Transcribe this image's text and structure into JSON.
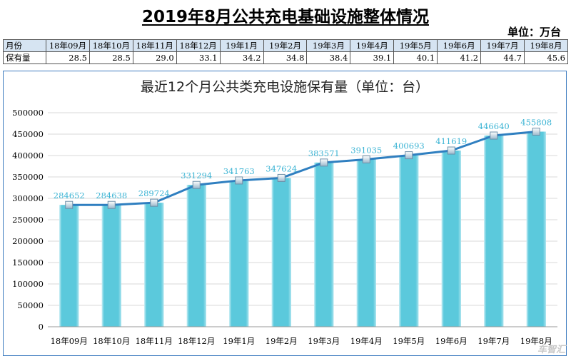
{
  "header": {
    "title": "2019年8月公共充电基础设施整体情况",
    "unit": "单位：万台"
  },
  "table": {
    "row_labels": [
      "月份",
      "保有量"
    ],
    "months": [
      "18年09月",
      "18年10月",
      "18年11月",
      "18年12月",
      "19年1月",
      "19年2月",
      "19年3月",
      "19年4月",
      "19年5月",
      "19年6月",
      "19年7月",
      "19年8月"
    ],
    "values": [
      "28.5",
      "28.5",
      "29.0",
      "33.1",
      "34.2",
      "34.8",
      "38.4",
      "39.1",
      "40.1",
      "41.2",
      "44.7",
      "45.6"
    ]
  },
  "watermark": "车智汇",
  "colors": {
    "bar": "#5bc9dc",
    "bar_light": "#c9eef5",
    "line": "#2f7fc0",
    "label": "#3cb4d4",
    "frame": "#3e7cc0",
    "table_header": "#d6e4f2"
  },
  "chart_data": {
    "type": "bar",
    "title": "最近12个月公共类充电设施保有量（单位：台）",
    "categories": [
      "18年09月",
      "18年10月",
      "18年11月",
      "18年12月",
      "19年1月",
      "19年2月",
      "19年3月",
      "19年4月",
      "19年5月",
      "19年6月",
      "19年7月",
      "19年8月"
    ],
    "series": [
      {
        "type": "bar",
        "values": [
          284652,
          284638,
          289724,
          331294,
          341763,
          347624,
          383571,
          391035,
          400693,
          411619,
          446640,
          455808
        ]
      },
      {
        "type": "line",
        "values": [
          284652,
          284638,
          289724,
          331294,
          341763,
          347624,
          383571,
          391035,
          400693,
          411619,
          446640,
          455808
        ]
      }
    ],
    "ylim": [
      0,
      500000
    ],
    "yticks": [
      0,
      50000,
      100000,
      150000,
      200000,
      250000,
      300000,
      350000,
      400000,
      450000,
      500000
    ],
    "grid": true,
    "legend": "none"
  }
}
